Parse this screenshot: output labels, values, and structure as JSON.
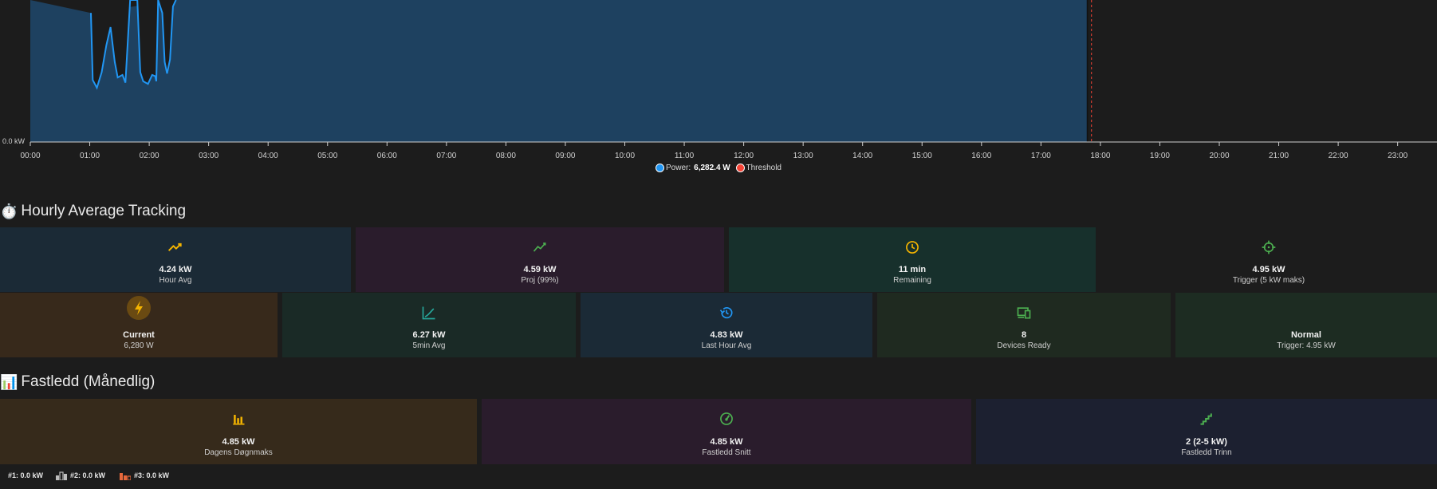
{
  "chart_data": {
    "type": "area",
    "x_ticks": [
      "00:00",
      "01:00",
      "02:00",
      "03:00",
      "04:00",
      "05:00",
      "06:00",
      "07:00",
      "08:00",
      "09:00",
      "10:00",
      "11:00",
      "12:00",
      "13:00",
      "14:00",
      "15:00",
      "16:00",
      "17:00",
      "18:00",
      "19:00",
      "20:00",
      "21:00",
      "22:00",
      "23:00"
    ],
    "y_axis_label": "0.0 kW",
    "current_time_hour": 17.78,
    "threshold_hour": 17.85,
    "series": [
      {
        "name": "Power",
        "color": "#2196f3",
        "fill": "#1e4160",
        "points": [
          [
            0,
            11
          ],
          [
            1.02,
            10
          ],
          [
            1.05,
            4.8
          ],
          [
            1.12,
            4.2
          ],
          [
            1.2,
            5.4
          ],
          [
            1.28,
            7.5
          ],
          [
            1.35,
            8.9
          ],
          [
            1.42,
            6.2
          ],
          [
            1.47,
            5.0
          ],
          [
            1.55,
            5.2
          ],
          [
            1.6,
            4.6
          ],
          [
            1.68,
            11
          ],
          [
            1.8,
            11
          ],
          [
            1.85,
            5.4
          ],
          [
            1.9,
            4.7
          ],
          [
            1.98,
            4.5
          ],
          [
            2.05,
            5.2
          ],
          [
            2.1,
            5.1
          ],
          [
            2.12,
            4.7
          ],
          [
            2.15,
            11
          ],
          [
            2.22,
            10
          ],
          [
            2.26,
            6.2
          ],
          [
            2.3,
            5.3
          ],
          [
            2.35,
            6.4
          ],
          [
            2.4,
            10.5
          ],
          [
            2.45,
            11
          ],
          [
            17.78,
            11
          ]
        ]
      },
      {
        "name": "Threshold",
        "color": "#f44336"
      }
    ],
    "legend": [
      {
        "name": "Power",
        "color": "#2196f3",
        "value": "6,282.4 W"
      },
      {
        "name": "Threshold",
        "color": "#f44336",
        "value": ""
      }
    ],
    "ylim": [
      0,
      11
    ]
  },
  "sections": {
    "hourly": {
      "icon": "⏱️",
      "title": "Hourly Average Tracking"
    },
    "fastledd": {
      "icon": "📊",
      "title": "Fastledd (Månedlig)"
    }
  },
  "row1": [
    {
      "icon": "trending-up-icon",
      "color": "#f4b400",
      "value": "4.24 kW",
      "label": "Hour Avg",
      "bg": "#1b2a36"
    },
    {
      "icon": "chart-line-icon",
      "color": "#4caf50",
      "value": "4.59 kW",
      "label": "Proj (99%)",
      "bg": "#2a1c2c"
    },
    {
      "icon": "clock-icon",
      "color": "#f4b400",
      "value": "11 min",
      "label": "Remaining",
      "bg": "#17302c"
    },
    {
      "icon": "crosshairs-icon",
      "color": "#4caf50",
      "value": "4.95 kW",
      "label": "Trigger (5 kW maks)",
      "bg": "#1c1c1c"
    }
  ],
  "row2": [
    {
      "icon": "lightning-icon",
      "color": "#f4b400",
      "value": "Current",
      "label": "6,280 W",
      "bg": "#37291b"
    },
    {
      "icon": "chart-bell-icon",
      "color": "#26a69a",
      "value": "6.27 kW",
      "label": "5min Avg",
      "bg": "#1a2a26"
    },
    {
      "icon": "history-icon",
      "color": "#2196f3",
      "value": "4.83 kW",
      "label": "Last Hour Avg",
      "bg": "#1b2a36"
    },
    {
      "icon": "devices-icon",
      "color": "#4caf50",
      "value": "8",
      "label": "Devices Ready",
      "bg": "#1f2a20"
    },
    {
      "icon": "",
      "color": "",
      "value": "Normal",
      "label": "Trigger: 4.95 kW",
      "bg": "#1d2c22"
    }
  ],
  "row3": [
    {
      "icon": "bar-chart-icon",
      "color": "#f4b400",
      "value": "4.85 kW",
      "label": "Dagens Døgnmaks",
      "bg": "#362a1b"
    },
    {
      "icon": "speedometer-icon",
      "color": "#4caf50",
      "value": "4.85 kW",
      "label": "Fastledd Snitt",
      "bg": "#2a1c2c"
    },
    {
      "icon": "stairs-icon",
      "color": "#4caf50",
      "value": "2 (2-5 kW)",
      "label": "Fastledd Trinn",
      "bg": "#1c2030"
    }
  ],
  "footer": [
    {
      "icon": "podium-gold-icon",
      "color": "#f4b400",
      "text": "#1: 0.0 kW"
    },
    {
      "icon": "podium-silver-icon",
      "color": "#bdbdbd",
      "text": "#2: 0.0 kW"
    },
    {
      "icon": "podium-bronze-icon",
      "color": "#e6683c",
      "text": "#3: 0.0 kW"
    }
  ]
}
